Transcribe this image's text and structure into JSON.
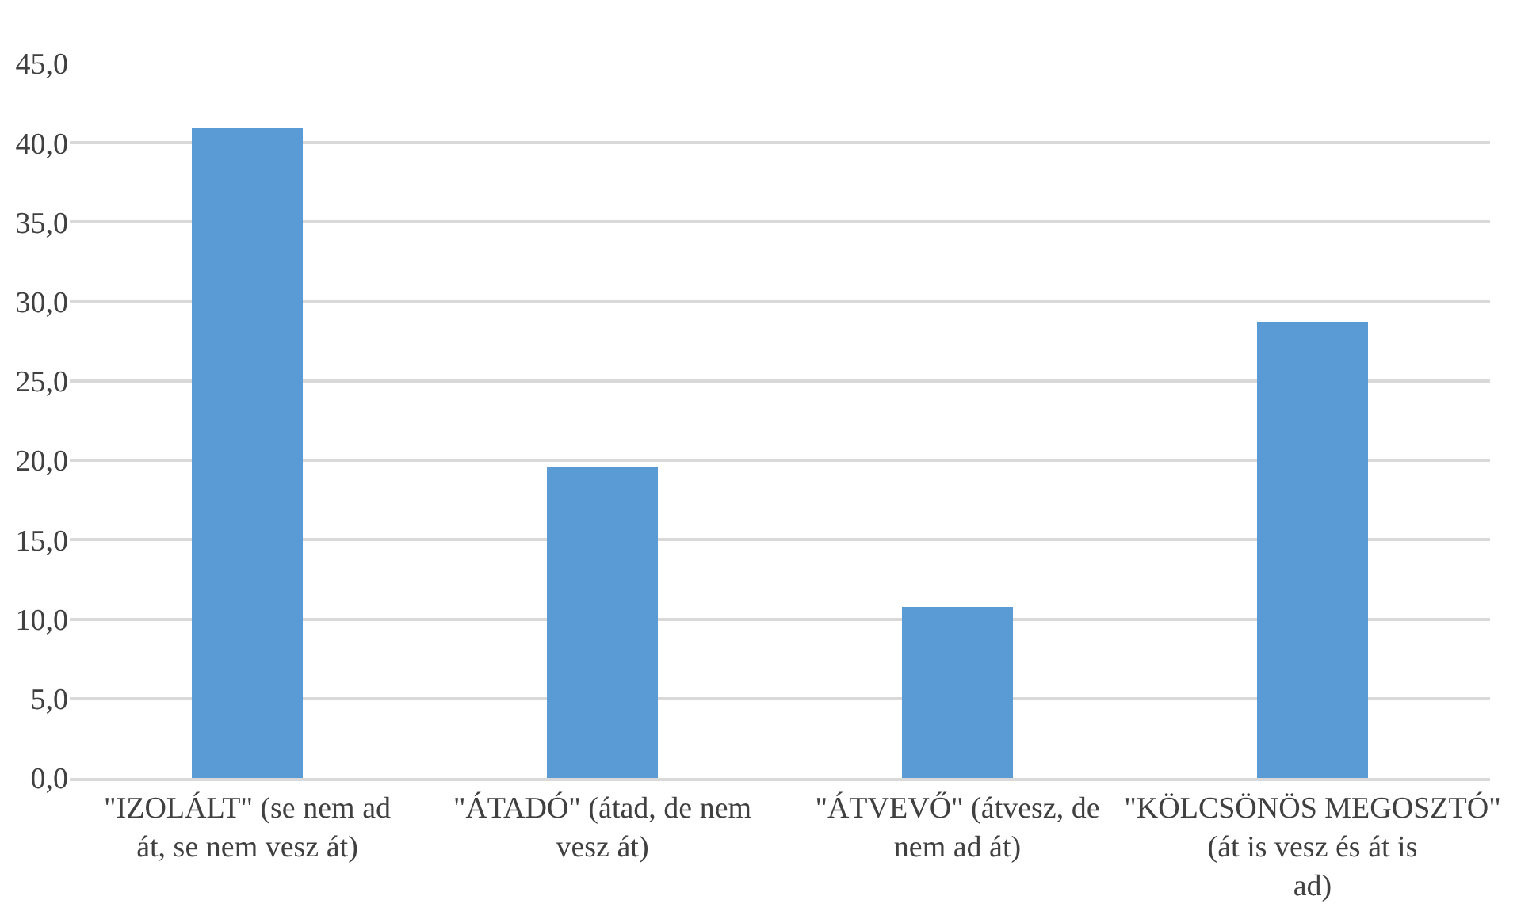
{
  "chart_data": {
    "type": "bar",
    "categories": [
      "\"IZOLÁLT\" (se nem ad át, se nem vesz át)",
      "\"ÁTADÓ\" (átad, de nem vesz át)",
      "\"ÁTVEVŐ\" (átvesz, de nem ad át)",
      "\"KÖLCSÖNÖS MEGOSZTÓ\" (át is vesz és át is ad)"
    ],
    "values": [
      40.9,
      19.6,
      10.8,
      28.7
    ],
    "color": "#5b9bd5",
    "ylim": [
      0,
      45
    ],
    "yticks": [
      {
        "value": 0,
        "label": "0,0"
      },
      {
        "value": 5,
        "label": "5,0"
      },
      {
        "value": 10,
        "label": "10,0"
      },
      {
        "value": 15,
        "label": "15,0"
      },
      {
        "value": 20,
        "label": "20,0"
      },
      {
        "value": 25,
        "label": "25,0"
      },
      {
        "value": 30,
        "label": "30,0"
      },
      {
        "value": 35,
        "label": "35,0"
      },
      {
        "value": 40,
        "label": "40,0"
      },
      {
        "value": 45,
        "label": "45,0"
      }
    ],
    "grid": "y",
    "legend": false
  }
}
